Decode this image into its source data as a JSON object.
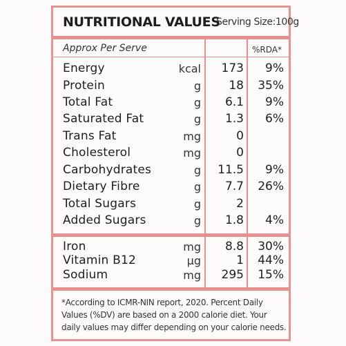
{
  "header": {
    "title": "NUTRITIONAL VALUES",
    "serving": "Serving Size:100g"
  },
  "subheader": {
    "approx": "Approx Per Serve",
    "rda": "%RDA*"
  },
  "nutrients": [
    {
      "name": "Energy",
      "unit": "kcal",
      "value": "173",
      "rda": "9%"
    },
    {
      "name": "Protein",
      "unit": "g",
      "value": "18",
      "rda": "35%"
    },
    {
      "name": "Total Fat",
      "unit": "g",
      "value": "6.1",
      "rda": "9%"
    },
    {
      "name": "Saturated Fat",
      "unit": "g",
      "value": "1.3",
      "rda": "6%"
    },
    {
      "name": "Trans Fat",
      "unit": "mg",
      "value": "0",
      "rda": ""
    },
    {
      "name": "Cholesterol",
      "unit": "mg",
      "value": "0",
      "rda": ""
    },
    {
      "name": "Carbohydrates",
      "unit": "g",
      "value": "11.5",
      "rda": "9%"
    },
    {
      "name": "Dietary Fibre",
      "unit": "g",
      "value": "7.7",
      "rda": "26%"
    },
    {
      "name": "Total Sugars",
      "unit": "g",
      "value": "2",
      "rda": ""
    },
    {
      "name": "Added Sugars",
      "unit": "g",
      "value": "1.8",
      "rda": "4%"
    }
  ],
  "minerals": [
    {
      "name": "Iron",
      "unit": "mg",
      "value": "8.8",
      "rda": "30%"
    },
    {
      "name": "Vitamin B12",
      "unit": "µg",
      "value": "1",
      "rda": "44%"
    },
    {
      "name": "Sodium",
      "unit": "mg",
      "value": "295",
      "rda": "15%"
    }
  ],
  "footnote": "*According to ICMR-NIN report, 2020. Percent Daily Values (%DV) are based on a 2000 calorie diet. Your daily values may differ depending on your calorie needs.",
  "colors": {
    "accent": "#ea8d8f",
    "background": "#fdfafa",
    "text": "#1e1e1e"
  }
}
